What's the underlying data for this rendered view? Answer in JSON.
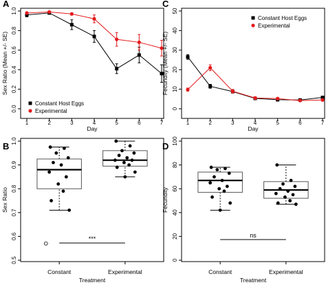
{
  "colors": {
    "constant": "#000000",
    "experimental": "#e31a1c",
    "outlier": "#ffffff"
  },
  "chart_data": [
    {
      "panel": "A",
      "type": "line",
      "xlabel": "Day",
      "ylabel": "Sex Ratio (Mean +/- SE)",
      "x": [
        1,
        2,
        3,
        4,
        5,
        6,
        7
      ],
      "xlim": [
        1,
        7
      ],
      "ylim": [
        0.0,
        1.0
      ],
      "yticks": [
        "0.0",
        "0.2",
        "0.4",
        "0.6",
        "0.8",
        "1.0"
      ],
      "xticks": [
        "1",
        "2",
        "3",
        "4",
        "5",
        "6",
        "7"
      ],
      "legend": {
        "placement": "bottom-left",
        "entries": [
          "Constant Host Eggs",
          "Experimental"
        ]
      },
      "series": [
        {
          "name": "Constant Host Eggs",
          "marker": "square",
          "values": [
            0.96,
            0.98,
            0.86,
            0.74,
            0.41,
            0.55,
            0.36
          ],
          "se": [
            0.02,
            0.01,
            0.05,
            0.06,
            0.05,
            0.08,
            0.09
          ]
        },
        {
          "name": "Experimental",
          "marker": "circle",
          "values": [
            0.98,
            0.99,
            0.97,
            0.92,
            0.71,
            0.68,
            0.62
          ],
          "se": [
            0.01,
            0.01,
            0.01,
            0.04,
            0.07,
            0.08,
            0.08
          ]
        }
      ]
    },
    {
      "panel": "C",
      "type": "line",
      "xlabel": "Day",
      "ylabel": "Fecundity (Mean +/- SE)",
      "x": [
        1,
        2,
        3,
        4,
        5,
        6,
        7
      ],
      "xlim": [
        1,
        7
      ],
      "ylim": [
        0,
        50
      ],
      "yticks": [
        "0",
        "10",
        "20",
        "30",
        "40",
        "50"
      ],
      "xticks": [
        "1",
        "2",
        "3",
        "4",
        "5",
        "6",
        "7"
      ],
      "legend": {
        "placement": "top-right",
        "entries": [
          "Constant Host Eggs",
          "Experimental"
        ]
      },
      "series": [
        {
          "name": "Constant Host Eggs",
          "marker": "square",
          "values": [
            26.5,
            11.5,
            8.8,
            5.3,
            4.6,
            4.5,
            5.8
          ],
          "se": [
            1.2,
            1.0,
            0.8,
            0.6,
            0.5,
            0.5,
            0.7
          ]
        },
        {
          "name": "Experimental",
          "marker": "circle",
          "values": [
            9.8,
            21.0,
            9.0,
            5.5,
            5.2,
            4.2,
            4.5
          ],
          "se": [
            0.8,
            1.5,
            0.9,
            0.6,
            0.6,
            0.5,
            0.6
          ]
        }
      ]
    },
    {
      "panel": "B",
      "type": "box",
      "xlabel": "Treatment",
      "ylabel": "Sex Ratio",
      "ylim": [
        0.5,
        1.0
      ],
      "yticks": [
        "0.5",
        "0.6",
        "0.7",
        "0.8",
        "0.9",
        "1.0"
      ],
      "categories": [
        "Constant",
        "Experimental"
      ],
      "boxes": [
        {
          "q1": 0.8,
          "median": 0.88,
          "q3": 0.925,
          "whisker_low": 0.71,
          "whisker_high": 0.975,
          "outliers": [
            0.57
          ],
          "points": [
            0.975,
            0.97,
            0.95,
            0.93,
            0.91,
            0.9,
            0.87,
            0.85,
            0.82,
            0.79,
            0.75,
            0.71
          ]
        },
        {
          "q1": 0.895,
          "median": 0.92,
          "q3": 0.96,
          "whisker_low": 0.85,
          "whisker_high": 1.0,
          "outliers": [],
          "points": [
            1.0,
            0.98,
            0.96,
            0.95,
            0.94,
            0.93,
            0.92,
            0.92,
            0.91,
            0.9,
            0.89,
            0.87,
            0.85
          ]
        }
      ],
      "significance": "***"
    },
    {
      "panel": "D",
      "type": "box",
      "xlabel": "Treatment",
      "ylabel": "Fecundity",
      "ylim": [
        0,
        100
      ],
      "yticks": [
        "0",
        "20",
        "40",
        "60",
        "80",
        "100"
      ],
      "categories": [
        "Constant",
        "Experimental"
      ],
      "boxes": [
        {
          "q1": 57,
          "median": 67,
          "q3": 74,
          "whisker_low": 42,
          "whisker_high": 78,
          "outliers": [],
          "points": [
            78,
            77,
            76,
            73,
            70,
            67,
            65,
            62,
            60,
            58,
            53,
            48,
            42
          ]
        },
        {
          "q1": 52,
          "median": 59,
          "q3": 66,
          "whisker_low": 47,
          "whisker_high": 80,
          "outliers": [],
          "points": [
            80,
            67,
            64,
            62,
            60,
            58,
            56,
            55,
            53,
            50,
            48,
            47
          ]
        }
      ],
      "significance": "ns"
    }
  ]
}
